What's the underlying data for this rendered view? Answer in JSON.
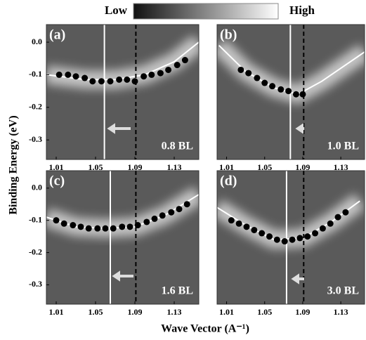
{
  "figure": {
    "colorbar_low": "Low",
    "colorbar_high": "High",
    "xlabel": "Wave Vector (A⁻¹)",
    "ylabel": "Binding Energy (eV)"
  },
  "chart_data": [
    {
      "type": "scatter",
      "panel": "(a)",
      "annotation": "0.8 BL",
      "color": "#000000",
      "x": [
        1.013,
        1.022,
        1.03,
        1.039,
        1.047,
        1.056,
        1.065,
        1.074,
        1.082,
        1.09,
        1.099,
        1.107,
        1.116,
        1.124,
        1.133,
        1.141
      ],
      "y": [
        -0.1,
        -0.1,
        -0.105,
        -0.11,
        -0.12,
        -0.12,
        -0.12,
        -0.115,
        -0.115,
        -0.12,
        -0.105,
        -0.1,
        -0.095,
        -0.085,
        -0.07,
        -0.055
      ],
      "curve": {
        "x": [
          1.0,
          1.04,
          1.07,
          1.1,
          1.13,
          1.155
        ],
        "y": [
          -0.1,
          -0.115,
          -0.115,
          -0.1,
          -0.06,
          0.0
        ]
      },
      "vlines": [
        {
          "x": 1.059,
          "style": "solid",
          "color": "#ffffff"
        },
        {
          "x": 1.091,
          "style": "dashed",
          "color": "#000000"
        }
      ],
      "xlim": [
        1.0,
        1.155
      ],
      "ylim": [
        -0.36,
        0.054
      ],
      "xticks": [
        1.01,
        1.05,
        1.09,
        1.13
      ],
      "yticks": [
        {
          "value": 0,
          "label": "0.0"
        },
        -0.1,
        -0.2,
        -0.3
      ]
    },
    {
      "type": "scatter",
      "panel": "(b)",
      "annotation": "1.0 BL",
      "color": "#000000",
      "x": [
        1.025,
        1.033,
        1.042,
        1.05,
        1.058,
        1.067,
        1.075,
        1.083,
        1.09
      ],
      "y": [
        -0.085,
        -0.095,
        -0.11,
        -0.125,
        -0.135,
        -0.145,
        -0.15,
        -0.16,
        -0.16
      ],
      "curve": {
        "x": [
          1.002,
          1.03,
          1.06,
          1.085,
          1.11,
          1.155
        ],
        "y": [
          -0.01,
          -0.09,
          -0.14,
          -0.16,
          -0.12,
          -0.03
        ]
      },
      "vlines": [
        {
          "x": 1.077,
          "style": "solid",
          "color": "#ffffff"
        },
        {
          "x": 1.091,
          "style": "dashed",
          "color": "#000000"
        }
      ],
      "xlim": [
        1.0,
        1.155
      ],
      "ylim": [
        -0.36,
        0.054
      ],
      "xticks": [
        1.01,
        1.05,
        1.09,
        1.13
      ]
    },
    {
      "type": "scatter",
      "panel": "(c)",
      "annotation": "1.6 BL",
      "color": "#000000",
      "x": [
        1.01,
        1.018,
        1.027,
        1.035,
        1.043,
        1.052,
        1.06,
        1.068,
        1.077,
        1.085,
        1.093,
        1.102,
        1.11,
        1.118,
        1.127,
        1.135,
        1.143
      ],
      "y": [
        -0.1,
        -0.11,
        -0.115,
        -0.12,
        -0.125,
        -0.125,
        -0.125,
        -0.125,
        -0.12,
        -0.12,
        -0.115,
        -0.105,
        -0.095,
        -0.085,
        -0.075,
        -0.065,
        -0.05
      ],
      "curve": {
        "x": [
          1.0,
          1.03,
          1.06,
          1.09,
          1.12,
          1.155
        ],
        "y": [
          -0.09,
          -0.12,
          -0.125,
          -0.12,
          -0.085,
          -0.02
        ]
      },
      "vlines": [
        {
          "x": 1.065,
          "style": "solid",
          "color": "#ffffff"
        },
        {
          "x": 1.091,
          "style": "dashed",
          "color": "#000000"
        }
      ],
      "xlim": [
        1.0,
        1.155
      ],
      "ylim": [
        -0.36,
        0.054
      ],
      "xticks": [
        1.01,
        1.05,
        1.09,
        1.13
      ],
      "yticks": [
        {
          "value": 0,
          "label": "0.0"
        },
        -0.1,
        -0.2,
        -0.3
      ]
    },
    {
      "type": "scatter",
      "panel": "(d)",
      "annotation": "3.0 BL",
      "color": "#000000",
      "x": [
        1.015,
        1.023,
        1.031,
        1.039,
        1.047,
        1.055,
        1.063,
        1.071,
        1.079,
        1.087,
        1.095,
        1.103,
        1.111,
        1.119,
        1.127,
        1.135
      ],
      "y": [
        -0.1,
        -0.11,
        -0.12,
        -0.13,
        -0.14,
        -0.15,
        -0.16,
        -0.165,
        -0.16,
        -0.155,
        -0.15,
        -0.14,
        -0.125,
        -0.11,
        -0.09,
        -0.075
      ],
      "curve": {
        "x": [
          1.0,
          1.03,
          1.06,
          1.09,
          1.12,
          1.15
        ],
        "y": [
          -0.06,
          -0.115,
          -0.16,
          -0.155,
          -0.105,
          -0.04
        ]
      },
      "vlines": [
        {
          "x": 1.073,
          "style": "solid",
          "color": "#ffffff"
        },
        {
          "x": 1.091,
          "style": "dashed",
          "color": "#000000"
        }
      ],
      "xlim": [
        1.0,
        1.155
      ],
      "ylim": [
        -0.36,
        0.054
      ],
      "xticks": [
        1.01,
        1.05,
        1.09,
        1.13
      ]
    }
  ]
}
